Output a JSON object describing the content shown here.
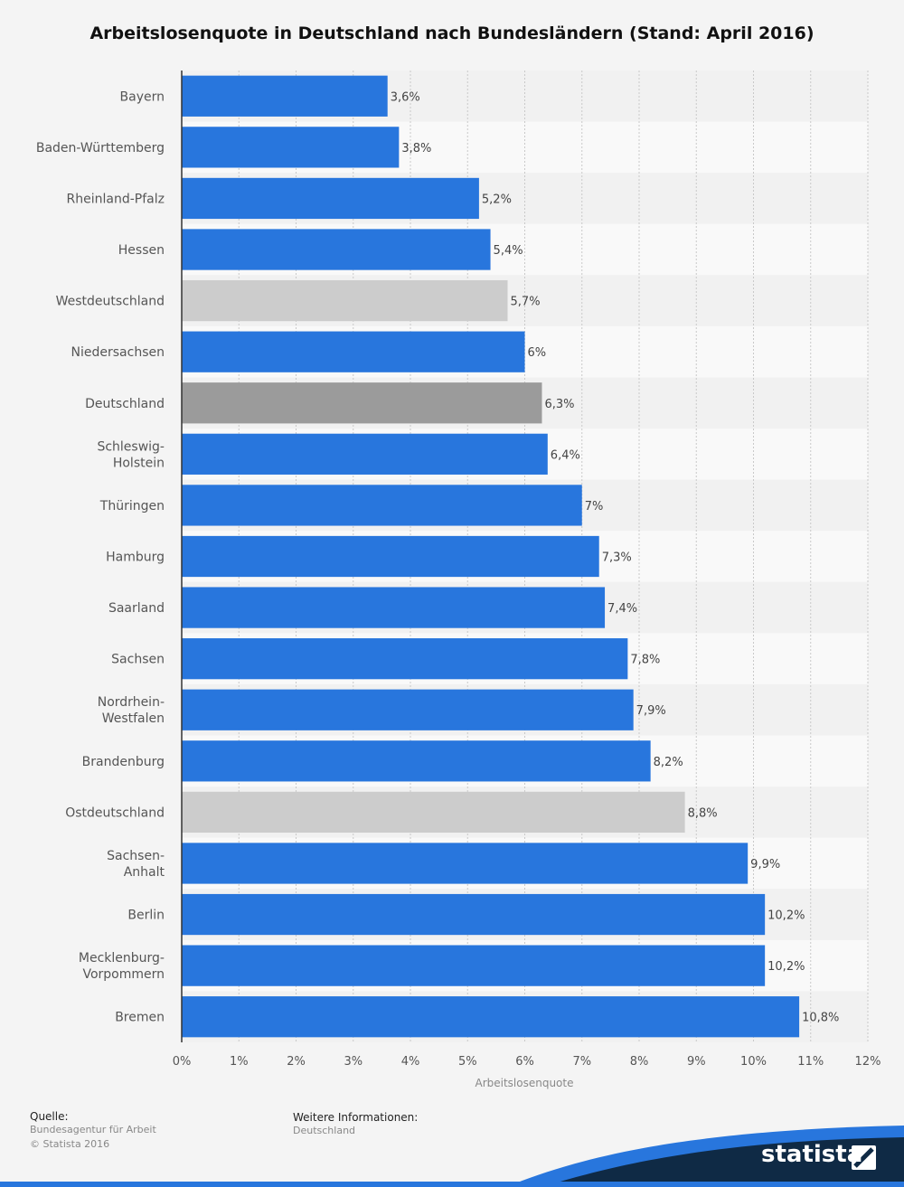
{
  "chart_data": {
    "type": "bar",
    "orientation": "horizontal",
    "title": "Arbeitslosenquote in Deutschland nach Bundesländern (Stand: April 2016)",
    "xlabel": "Arbeitslosenquote",
    "ylabel": "",
    "xlim": [
      0,
      12
    ],
    "x_ticks": [
      "0%",
      "1%",
      "2%",
      "3%",
      "4%",
      "5%",
      "6%",
      "7%",
      "8%",
      "9%",
      "10%",
      "11%",
      "12%"
    ],
    "grid": true,
    "categories": [
      [
        "Bayern"
      ],
      [
        "Baden-Württemberg"
      ],
      [
        "Rheinland-Pfalz"
      ],
      [
        "Hessen"
      ],
      [
        "Westdeutschland"
      ],
      [
        "Niedersachsen"
      ],
      [
        "Deutschland"
      ],
      [
        "Schleswig-",
        "Holstein"
      ],
      [
        "Thüringen"
      ],
      [
        "Hamburg"
      ],
      [
        "Saarland"
      ],
      [
        "Sachsen"
      ],
      [
        "Nordrhein-",
        "Westfalen"
      ],
      [
        "Brandenburg"
      ],
      [
        "Ostdeutschland"
      ],
      [
        "Sachsen-",
        "Anhalt"
      ],
      [
        "Berlin"
      ],
      [
        "Mecklenburg-",
        "Vorpommern"
      ],
      [
        "Bremen"
      ]
    ],
    "values": [
      3.6,
      3.8,
      5.2,
      5.4,
      5.7,
      6,
      6.3,
      6.4,
      7,
      7.3,
      7.4,
      7.8,
      7.9,
      8.2,
      8.8,
      9.9,
      10.2,
      10.2,
      10.8
    ],
    "value_labels": [
      "3,6%",
      "3,8%",
      "5,2%",
      "5,4%",
      "5,7%",
      "6%",
      "6,3%",
      "6,4%",
      "7%",
      "7,3%",
      "7,4%",
      "7,8%",
      "7,9%",
      "8,2%",
      "8,8%",
      "9,9%",
      "10,2%",
      "10,2%",
      "10,8%"
    ],
    "bar_colors": [
      "#2876dd",
      "#2876dd",
      "#2876dd",
      "#2876dd",
      "#cccccc",
      "#2876dd",
      "#9b9b9b",
      "#2876dd",
      "#2876dd",
      "#2876dd",
      "#2876dd",
      "#2876dd",
      "#2876dd",
      "#2876dd",
      "#cccccc",
      "#2876dd",
      "#2876dd",
      "#2876dd",
      "#2876dd"
    ]
  },
  "footer": {
    "source_heading": "Quelle:",
    "source_lines": [
      "Bundesagentur für Arbeit",
      "© Statista 2016"
    ],
    "info_heading": "Weitere Informationen:",
    "info_lines": [
      "Deutschland"
    ]
  },
  "brand": {
    "logo_text": "statista",
    "colors": {
      "navy": "#0f2a45",
      "blue": "#2876dd"
    }
  }
}
